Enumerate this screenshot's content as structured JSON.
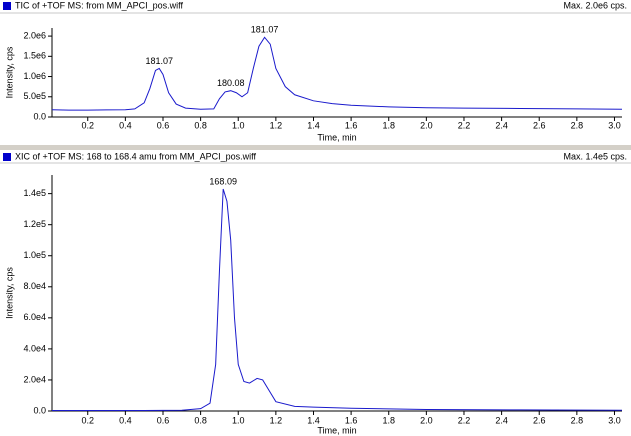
{
  "chart_data": [
    {
      "type": "line",
      "title": "TIC of +TOF MS: from MM_APCI_pos.wiff",
      "max_label": "Max. 2.0e6 cps.",
      "x_label": "Time, min",
      "y_label": "Intensity, cps",
      "color": "#1a1acc",
      "x": [
        0.01,
        0.1,
        0.2,
        0.3,
        0.4,
        0.45,
        0.5,
        0.53,
        0.56,
        0.58,
        0.6,
        0.63,
        0.67,
        0.72,
        0.8,
        0.87,
        0.9,
        0.93,
        0.96,
        0.99,
        1.02,
        1.05,
        1.08,
        1.11,
        1.14,
        1.17,
        1.2,
        1.25,
        1.3,
        1.4,
        1.5,
        1.6,
        1.8,
        2.0,
        2.2,
        2.5,
        2.8,
        3.04
      ],
      "values": [
        180000,
        170000,
        170000,
        175000,
        180000,
        200000,
        350000,
        700000,
        1150000,
        1200000,
        1050000,
        600000,
        320000,
        220000,
        190000,
        200000,
        450000,
        620000,
        650000,
        600000,
        500000,
        600000,
        1200000,
        1750000,
        1970000,
        1800000,
        1200000,
        750000,
        550000,
        400000,
        330000,
        290000,
        250000,
        230000,
        220000,
        210000,
        200000,
        190000
      ],
      "annotations": [
        {
          "text": "181.07",
          "x": 0.58,
          "y": 1200000
        },
        {
          "text": "180.08",
          "x": 0.96,
          "y": 650000
        },
        {
          "text": "181.07",
          "x": 1.14,
          "y": 1970000
        }
      ],
      "xlim": [
        0.01,
        3.04
      ],
      "ylim": [
        0,
        2200000
      ],
      "xticks": [
        0.2,
        0.4,
        0.6,
        0.8,
        {
          "value": 1,
          "label": "1.0"
        },
        1.2,
        1.4,
        1.6,
        1.8,
        {
          "value": 2,
          "label": "2.0"
        },
        2.2,
        2.4,
        2.6,
        2.8,
        {
          "value": 3,
          "label": "3.0"
        }
      ],
      "yticks": [
        {
          "value": 0,
          "label": "0.0"
        },
        {
          "value": 500000,
          "label": "5.0e5"
        },
        {
          "value": 1000000,
          "label": "1.0e6"
        },
        {
          "value": 1500000,
          "label": "1.5e6"
        },
        {
          "value": 2000000,
          "label": "2.0e6"
        }
      ]
    },
    {
      "type": "line",
      "title": "XIC of +TOF MS: 168 to 168.4 amu from MM_APCI_pos.wiff",
      "max_label": "Max. 1.4e5 cps.",
      "x_label": "Time, min",
      "y_label": "Intensity, cps",
      "color": "#1a1acc",
      "x": [
        0.01,
        0.5,
        0.7,
        0.8,
        0.85,
        0.88,
        0.9,
        0.92,
        0.94,
        0.96,
        0.98,
        1.0,
        1.03,
        1.06,
        1.1,
        1.13,
        1.17,
        1.2,
        1.3,
        1.4,
        1.6,
        2.0,
        2.5,
        3.04
      ],
      "values": [
        300,
        300,
        500,
        1500,
        5000,
        30000,
        90000,
        143000,
        135000,
        110000,
        60000,
        30000,
        19000,
        18000,
        21000,
        20000,
        12000,
        6000,
        3000,
        2500,
        1800,
        1000,
        700,
        500
      ],
      "annotations": [
        {
          "text": "168.09",
          "x": 0.92,
          "y": 143000
        }
      ],
      "xlim": [
        0.01,
        3.04
      ],
      "ylim": [
        0,
        152000
      ],
      "xticks": [
        0.2,
        0.4,
        0.6,
        0.8,
        {
          "value": 1,
          "label": "1.0"
        },
        1.2,
        1.4,
        1.6,
        1.8,
        {
          "value": 2,
          "label": "2.0"
        },
        2.2,
        2.4,
        2.6,
        2.8,
        {
          "value": 3,
          "label": "3.0"
        }
      ],
      "yticks": [
        {
          "value": 0,
          "label": "0.0"
        },
        {
          "value": 20000,
          "label": "2.0e4"
        },
        {
          "value": 40000,
          "label": "4.0e4"
        },
        {
          "value": 60000,
          "label": "6.0e4"
        },
        {
          "value": 80000,
          "label": "8.0e4"
        },
        {
          "value": 100000,
          "label": "1.0e5"
        },
        {
          "value": 120000,
          "label": "1.2e5"
        },
        {
          "value": 140000,
          "label": "1.4e5"
        }
      ]
    }
  ]
}
